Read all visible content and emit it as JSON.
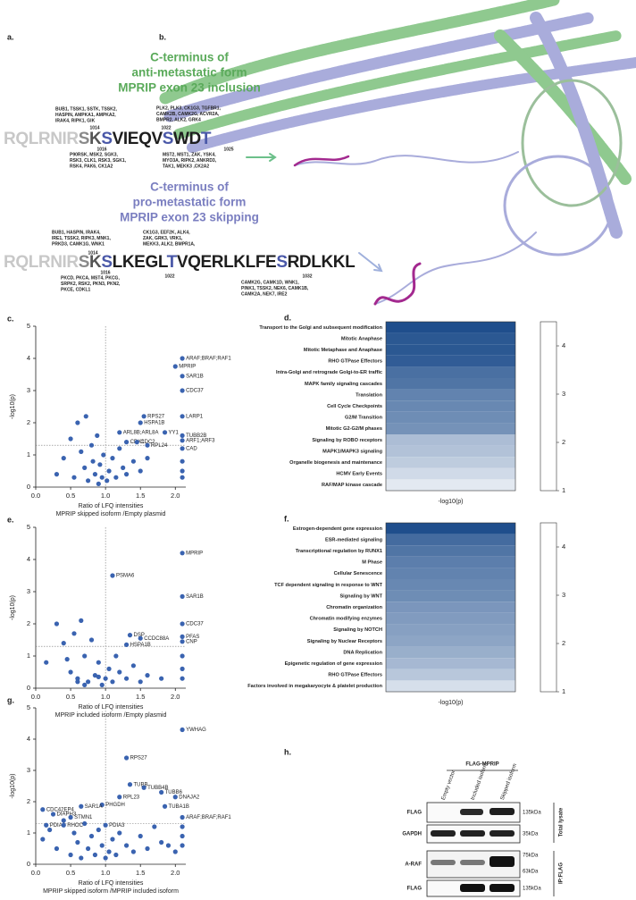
{
  "panel_a": {
    "letter": "a.",
    "inclusion": {
      "title_lines": [
        "C-terminus of",
        "anti-metastatic form",
        "MPRIP exon 23 inclusion"
      ],
      "title_color": "#5aaa5a",
      "kinases_above": [
        [
          "BUB1, TSSK1, SSTK, TSSK2,",
          "HASPIN, AMPKA1, AMPKA2,",
          "IRAK4, RIPK1, GIK"
        ],
        [
          "PLK2, PLK3, CK1G3, TGFBR1,",
          "CAMK2B, CAMK2G, ACVR2A,",
          "BMPR2, ALK2, GRK4"
        ]
      ],
      "kinases_below": [
        [
          "P90RSK, MSK2, SGK3,",
          "RSK3, CLK1, RSK3, SGK1,",
          "RSK4, PAK6, CK1A2"
        ],
        [
          "MST2, MST1, ZAK, YSK4,",
          "MYO3A, RIPK2, ANKRD3,",
          "TAK1, MEKK3 ,CK2A2"
        ]
      ],
      "positions_above": [
        1014,
        1022
      ],
      "positions_below": [
        1016,
        1025
      ],
      "sequence": [
        {
          "text": "RQLRNIR",
          "color": "#c8c8c8"
        },
        {
          "text": "S",
          "color": "#8a8a8a"
        },
        {
          "text": "K",
          "color": "#555555"
        },
        {
          "text": "S",
          "color": "#4a58a8"
        },
        {
          "text": "VIEQV",
          "color": "#1e1e1e"
        },
        {
          "text": "S",
          "color": "#4a58a8"
        },
        {
          "text": "WD",
          "color": "#1e1e1e"
        },
        {
          "text": "T",
          "color": "#4a58a8"
        }
      ]
    },
    "skipping": {
      "title_lines": [
        "C-terminus of",
        "pro-metastatic form",
        "MPRIP exon 23 skipping"
      ],
      "title_color": "#7a7ec0",
      "kinases_above": [
        [
          "BUB1, HASPIN, IRAK4,",
          "IRE1, TSSK2, RIPK3, MNK1,",
          "PRKD3, CAMK1G, WNK1"
        ],
        [
          "CK1G3, EEF2K, ALK4,",
          "ZAK, GRK3, VRK1,",
          "MEKK3, ALK2, BMPR1A,"
        ]
      ],
      "kinases_below": [
        [
          "PKCD, PKCA, MST4, PKCG,",
          "SRPK2, RSK2, PKN3, PKN2,",
          "PKCE, CDKL1"
        ],
        [
          "CAMK2G, CAMK1D, WNK1,",
          "PINK1, TSSK2, NEK6, CAMK1B,",
          "CAMK2A, NEK7, IRE2"
        ]
      ],
      "positions_above": [
        1014
      ],
      "positions_below": [
        1016,
        1022,
        1032
      ],
      "sequence": [
        {
          "text": "RQLRNIR",
          "color": "#c8c8c8"
        },
        {
          "text": "S",
          "color": "#8a8a8a"
        },
        {
          "text": "K",
          "color": "#555555"
        },
        {
          "text": "S",
          "color": "#4a58a8"
        },
        {
          "text": "LKEGL",
          "color": "#1e1e1e"
        },
        {
          "text": "T",
          "color": "#4a58a8"
        },
        {
          "text": "VQERLKLFE",
          "color": "#1e1e1e"
        },
        {
          "text": "S",
          "color": "#4a58a8"
        },
        {
          "text": "RDLKKL",
          "color": "#1e1e1e"
        }
      ]
    }
  },
  "panel_b": {
    "letter": "b."
  },
  "volcanoes": [
    {
      "letter": "c.",
      "type": "scatter",
      "y_label": "-log10(p)",
      "x_label_lines": [
        "Ratio of LFQ intensities",
        "MPRIP skipped isoform /Empty plasmid"
      ],
      "xlim": [
        0,
        2.15
      ],
      "ylim": [
        0,
        5
      ],
      "xticks": [
        {
          "value": 0,
          "label": "0.0"
        },
        {
          "value": 0.5,
          "label": "0.5"
        },
        {
          "value": 1,
          "label": "1.0"
        },
        {
          "value": 1.5,
          "label": "1.5"
        },
        {
          "value": 2,
          "label": "2.0"
        }
      ],
      "yticks": [
        0,
        1,
        2,
        3,
        4,
        5
      ],
      "threshold_x": 1,
      "threshold_y": 1.3,
      "color": "#3a63b0",
      "x": [
        0.3,
        0.4,
        0.5,
        0.55,
        0.6,
        0.65,
        0.7,
        0.72,
        0.75,
        0.8,
        0.82,
        0.85,
        0.88,
        0.9,
        0.92,
        0.95,
        0.97,
        1.02,
        1.05,
        1.1,
        1.15,
        1.2,
        1.25,
        1.3,
        1.4,
        1.5,
        1.6,
        2.1,
        2.1,
        2.1
      ],
      "y": [
        0.4,
        0.9,
        1.5,
        0.3,
        2.0,
        1.1,
        0.6,
        2.2,
        0.2,
        1.3,
        0.8,
        0.4,
        1.6,
        0.1,
        0.7,
        0.3,
        1.0,
        0.2,
        0.5,
        0.9,
        0.3,
        1.2,
        0.6,
        0.4,
        0.8,
        0.5,
        0.9,
        0.8,
        0.5,
        0.3
      ],
      "labeled": [
        {
          "name": "ARAF;BRAF;RAF1",
          "x": 2.1,
          "y": 4.0
        },
        {
          "name": "MPRIP",
          "x": 2.0,
          "y": 3.75
        },
        {
          "name": "SAR1B",
          "x": 2.1,
          "y": 3.45
        },
        {
          "name": "CDC37",
          "x": 2.1,
          "y": 3.0
        },
        {
          "name": "LARP1",
          "x": 2.1,
          "y": 2.2
        },
        {
          "name": "RPS27",
          "x": 1.55,
          "y": 2.2
        },
        {
          "name": "HSPA1B",
          "x": 1.5,
          "y": 2.0
        },
        {
          "name": "YY1",
          "x": 1.85,
          "y": 1.7
        },
        {
          "name": "ARL8B;ARL8A",
          "x": 1.2,
          "y": 1.7
        },
        {
          "name": "TUBB2B",
          "x": 2.1,
          "y": 1.6
        },
        {
          "name": "ARF1;ARF3",
          "x": 2.1,
          "y": 1.45
        },
        {
          "name": "CDK1",
          "x": 1.3,
          "y": 1.4
        },
        {
          "name": "CDC2",
          "x": 1.45,
          "y": 1.4
        },
        {
          "name": "RPL24",
          "x": 1.6,
          "y": 1.3
        },
        {
          "name": "CAD",
          "x": 2.1,
          "y": 1.2
        }
      ]
    },
    {
      "letter": "e.",
      "type": "scatter",
      "y_label": "-log10(p)",
      "x_label_lines": [
        "Ratio of LFQ intensities",
        "MPRIP included isoform /Empty plasmid"
      ],
      "xlim": [
        0,
        2.15
      ],
      "ylim": [
        0,
        5
      ],
      "xticks": [
        {
          "value": 0,
          "label": "0.0"
        },
        {
          "value": 0.5,
          "label": "0.5"
        },
        {
          "value": 1,
          "label": "1.0"
        },
        {
          "value": 1.5,
          "label": "1.5"
        },
        {
          "value": 2,
          "label": "2.0"
        }
      ],
      "yticks": [
        0,
        1,
        2,
        3,
        4,
        5
      ],
      "threshold_x": 1,
      "threshold_y": 1.3,
      "color": "#3a63b0",
      "x": [
        0.15,
        0.3,
        0.4,
        0.5,
        0.55,
        0.6,
        0.65,
        0.7,
        0.75,
        0.8,
        0.85,
        0.9,
        0.95,
        1.0,
        1.05,
        1.1,
        1.15,
        1.2,
        1.3,
        1.4,
        1.5,
        1.6,
        1.8,
        0.45,
        0.6,
        0.7,
        0.9,
        2.1,
        2.1,
        2.1
      ],
      "y": [
        0.8,
        2.0,
        1.4,
        0.5,
        1.7,
        0.3,
        2.1,
        1.0,
        0.2,
        1.5,
        0.4,
        0.8,
        0.1,
        0.3,
        0.6,
        0.2,
        1.0,
        0.5,
        0.3,
        0.7,
        0.2,
        0.4,
        0.3,
        0.9,
        0.2,
        0.1,
        0.35,
        1.0,
        0.6,
        0.3
      ],
      "labeled": [
        {
          "name": "MPRIP",
          "x": 2.1,
          "y": 4.2
        },
        {
          "name": "PSMA6",
          "x": 1.1,
          "y": 3.5
        },
        {
          "name": "SAR1B",
          "x": 2.1,
          "y": 2.85
        },
        {
          "name": "CDC37",
          "x": 2.1,
          "y": 2.0
        },
        {
          "name": "DSP",
          "x": 1.35,
          "y": 1.65
        },
        {
          "name": "CCDC88A",
          "x": 1.5,
          "y": 1.55
        },
        {
          "name": "PFAS",
          "x": 2.1,
          "y": 1.6
        },
        {
          "name": "CNP",
          "x": 2.1,
          "y": 1.45
        },
        {
          "name": "HSPA1B",
          "x": 1.3,
          "y": 1.35
        }
      ]
    },
    {
      "letter": "g.",
      "type": "scatter",
      "y_label": "-log10(p)",
      "x_label_lines": [
        "Ratio of LFQ intensities",
        "MPRIP skipped isoform /MPRIP included isoform"
      ],
      "xlim": [
        0,
        2.15
      ],
      "ylim": [
        0,
        5
      ],
      "xticks": [
        {
          "value": 0,
          "label": "0.0"
        },
        {
          "value": 0.5,
          "label": "0.5"
        },
        {
          "value": 1,
          "label": "1.0"
        },
        {
          "value": 1.5,
          "label": "1.5"
        },
        {
          "value": 2,
          "label": "2.0"
        }
      ],
      "yticks": [
        0,
        1,
        2,
        3,
        4,
        5
      ],
      "threshold_x": 1,
      "threshold_y": 1.3,
      "color": "#3a63b0",
      "x": [
        0.1,
        0.2,
        0.3,
        0.4,
        0.5,
        0.55,
        0.6,
        0.65,
        0.7,
        0.75,
        0.8,
        0.85,
        0.9,
        0.95,
        1.0,
        1.05,
        1.1,
        1.15,
        1.2,
        1.3,
        1.4,
        1.5,
        1.6,
        1.7,
        1.8,
        1.9,
        2.0,
        2.1,
        2.1,
        2.1
      ],
      "y": [
        0.8,
        1.1,
        0.5,
        1.4,
        0.3,
        1.0,
        0.7,
        0.2,
        1.3,
        0.5,
        0.9,
        0.3,
        1.1,
        0.6,
        0.2,
        0.4,
        0.8,
        0.3,
        1.0,
        0.6,
        0.4,
        0.9,
        0.5,
        1.2,
        0.7,
        0.6,
        0.4,
        1.2,
        0.9,
        0.6
      ],
      "labeled": [
        {
          "name": "YWHAG",
          "x": 2.1,
          "y": 4.3
        },
        {
          "name": "RPS27",
          "x": 1.3,
          "y": 3.4
        },
        {
          "name": "TUBB",
          "x": 1.35,
          "y": 2.55
        },
        {
          "name": "TUBB4B",
          "x": 1.55,
          "y": 2.45
        },
        {
          "name": "TUBB6",
          "x": 1.8,
          "y": 2.3
        },
        {
          "name": "DNAJA2",
          "x": 2.0,
          "y": 2.15
        },
        {
          "name": "RPL23",
          "x": 1.2,
          "y": 2.15
        },
        {
          "name": "PHGDH",
          "x": 0.95,
          "y": 1.9
        },
        {
          "name": "TUBA1B",
          "x": 1.85,
          "y": 1.85
        },
        {
          "name": "SAR1A",
          "x": 0.65,
          "y": 1.85
        },
        {
          "name": "CDC42EP4",
          "x": 0.1,
          "y": 1.75
        },
        {
          "name": "DIAPH3",
          "x": 0.25,
          "y": 1.6
        },
        {
          "name": "STMN1",
          "x": 0.5,
          "y": 1.5
        },
        {
          "name": "ARAF;BRAF;RAF1",
          "x": 2.1,
          "y": 1.5
        },
        {
          "name": "PDIA6",
          "x": 0.15,
          "y": 1.25
        },
        {
          "name": "RHOC",
          "x": 0.4,
          "y": 1.25
        },
        {
          "name": "PDIA3",
          "x": 1.0,
          "y": 1.25
        }
      ]
    }
  ],
  "heatmaps": [
    {
      "letter": "d.",
      "type": "heatmap",
      "x_label": "-log10(p)",
      "clim": [
        1,
        4.5
      ],
      "cticks": [
        1,
        2,
        3,
        4
      ],
      "color_low": "#f5f7fb",
      "color_high": "#1f4e8c",
      "rows": [
        {
          "label": "Transport to the Golgi and subsequent modification",
          "value": 4.5
        },
        {
          "label": "Mitotic Anaphase",
          "value": 4.3
        },
        {
          "label": "Mitotic Metaphase and Anaphase",
          "value": 4.3
        },
        {
          "label": "RHO GTPase Effectors",
          "value": 4.2
        },
        {
          "label": "Intra-Golgi and retrograde Golgi-to-ER traffic",
          "value": 3.8
        },
        {
          "label": "MAPK family signaling cascades",
          "value": 3.7
        },
        {
          "label": "Translation",
          "value": 3.4
        },
        {
          "label": "Cell Cycle Checkpoints",
          "value": 3.3
        },
        {
          "label": "G2/M Transition",
          "value": 3.2
        },
        {
          "label": "Mitotic G2-G2/M phases",
          "value": 3.1
        },
        {
          "label": "Signaling by ROBO receptors",
          "value": 2.2
        },
        {
          "label": "MAPK1/MAPK3 signaling",
          "value": 2.1
        },
        {
          "label": "Organelle biogenesis and maintenance",
          "value": 1.9
        },
        {
          "label": "HCMV Early Events",
          "value": 1.6
        },
        {
          "label": "RAF/MAP kinase cascade",
          "value": 1.3
        }
      ]
    },
    {
      "letter": "f.",
      "type": "heatmap",
      "x_label": "-log10(p)",
      "clim": [
        1,
        4.5
      ],
      "cticks": [
        1,
        2,
        3,
        4
      ],
      "color_low": "#f5f7fb",
      "color_high": "#1f4e8c",
      "rows": [
        {
          "label": "Estrogen-dependent gene expression",
          "value": 4.5
        },
        {
          "label": "ESR-mediated signaling",
          "value": 3.9
        },
        {
          "label": "Transcriptional regulation by RUNX1",
          "value": 3.7
        },
        {
          "label": "M Phase",
          "value": 3.5
        },
        {
          "label": "Cellular Senescence",
          "value": 3.4
        },
        {
          "label": "TCF dependent signaling in response to WNT",
          "value": 3.3
        },
        {
          "label": "Signaling by WNT",
          "value": 3.2
        },
        {
          "label": "Chromatin organization",
          "value": 3.0
        },
        {
          "label": "Chromatin modifying enzymes",
          "value": 2.9
        },
        {
          "label": "Signaling by NOTCH",
          "value": 2.8
        },
        {
          "label": "Signaling by Nuclear Receptors",
          "value": 2.7
        },
        {
          "label": "DNA Replication",
          "value": 2.5
        },
        {
          "label": "Epigenetic regulation of gene expression",
          "value": 2.3
        },
        {
          "label": "RHO GTPase Effectors",
          "value": 2.0
        },
        {
          "label": "Factors involved in megakaryocyte & platelet production",
          "value": 1.5
        }
      ]
    }
  ],
  "panel_h": {
    "letter": "h.",
    "group_label": "FLAG-MPRIP",
    "lanes": [
      "Empty vector",
      "Included isoform",
      "Skipped isoform"
    ],
    "rows": [
      {
        "label": "FLAG",
        "sizes": [
          "135kDa"
        ]
      },
      {
        "label": "GAPDH",
        "sizes": [
          "35kDa"
        ]
      },
      {
        "label": "A-RAF",
        "sizes": [
          "75kDa",
          "63kDa"
        ]
      },
      {
        "label": "FLAG",
        "sizes": [
          "135kDa"
        ]
      }
    ],
    "sections": [
      "Total lysate",
      "IP:FLAG"
    ]
  }
}
